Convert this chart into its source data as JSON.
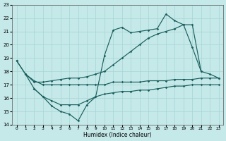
{
  "xlabel": "Humidex (Indice chaleur)",
  "xlim": [
    -0.5,
    23.5
  ],
  "ylim": [
    14,
    23
  ],
  "yticks": [
    14,
    15,
    16,
    17,
    18,
    19,
    20,
    21,
    22,
    23
  ],
  "xticks": [
    0,
    1,
    2,
    3,
    4,
    5,
    6,
    7,
    8,
    9,
    10,
    11,
    12,
    13,
    14,
    15,
    16,
    17,
    18,
    19,
    20,
    21,
    22,
    23
  ],
  "bg_color": "#c5e8e8",
  "grid_color": "#a8d5d5",
  "line_color": "#1a5f5f",
  "lines": [
    {
      "x": [
        0,
        1,
        2,
        3,
        4,
        5,
        6,
        7,
        8,
        9,
        10,
        11,
        12,
        13,
        14,
        15,
        16,
        17,
        18,
        19,
        20,
        21
      ],
      "y": [
        18.8,
        17.8,
        16.7,
        16.1,
        15.4,
        15.0,
        14.8,
        14.3,
        15.5,
        16.1,
        19.2,
        21.1,
        21.3,
        20.9,
        21.0,
        21.1,
        21.2,
        22.3,
        21.8,
        21.5,
        19.8,
        18.0
      ]
    },
    {
      "x": [
        0,
        1,
        2,
        3,
        4,
        5,
        6,
        7,
        8,
        9,
        10,
        11,
        12,
        13,
        14,
        15,
        16,
        17,
        18,
        19,
        20,
        21,
        22,
        23
      ],
      "y": [
        18.8,
        17.8,
        17.2,
        17.2,
        17.3,
        17.4,
        17.5,
        17.5,
        17.6,
        17.8,
        18.0,
        18.5,
        19.0,
        19.5,
        20.0,
        20.5,
        20.8,
        21.0,
        21.2,
        21.5,
        21.5,
        18.0,
        17.8,
        17.5
      ]
    },
    {
      "x": [
        1,
        2,
        3,
        4,
        5,
        6,
        7,
        8,
        9,
        10,
        11,
        12,
        13,
        14,
        15,
        16,
        17,
        18,
        19,
        20,
        21,
        22,
        23
      ],
      "y": [
        17.8,
        17.3,
        17.0,
        17.0,
        17.0,
        17.0,
        17.0,
        17.0,
        17.0,
        17.0,
        17.2,
        17.2,
        17.2,
        17.2,
        17.3,
        17.3,
        17.3,
        17.4,
        17.4,
        17.4,
        17.5,
        17.5,
        17.5
      ]
    },
    {
      "x": [
        2,
        3,
        4,
        5,
        6,
        7,
        8,
        9,
        10,
        11,
        12,
        13,
        14,
        15,
        16,
        17,
        18,
        19,
        20,
        21,
        22,
        23
      ],
      "y": [
        16.7,
        16.1,
        15.8,
        15.5,
        15.5,
        15.5,
        15.8,
        16.1,
        16.3,
        16.4,
        16.5,
        16.5,
        16.6,
        16.6,
        16.7,
        16.8,
        16.9,
        16.9,
        17.0,
        17.0,
        17.0,
        17.0
      ]
    }
  ]
}
